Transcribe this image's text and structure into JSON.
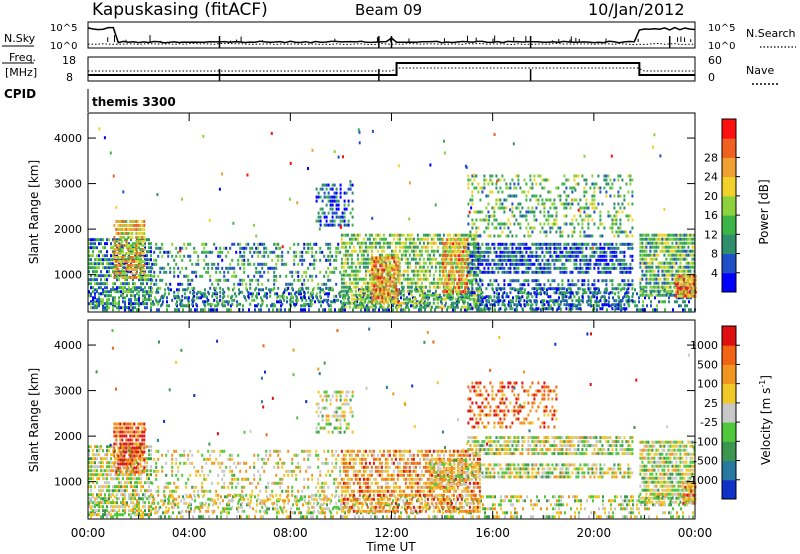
{
  "header": {
    "station": "Kapuskasing (fitACF)",
    "beam": "Beam 09",
    "date": "10/Jan/2012"
  },
  "noise_panel": {
    "left_label": "N.Sky",
    "right_label": "N.Search",
    "left_ticks": [
      "10^5",
      "10^0"
    ],
    "right_ticks": [
      "10^5",
      "10^0"
    ]
  },
  "freq_panel": {
    "left_label_1": "Freq.",
    "left_label_2": "[MHz]",
    "right_label": "Nave",
    "left_ticks": [
      "18",
      "8"
    ],
    "right_ticks": [
      "60",
      "0"
    ]
  },
  "cpid": {
    "label": "CPID",
    "value": "themis 3300"
  },
  "x_ticks": [
    "00:00",
    "04:00",
    "08:00",
    "12:00",
    "16:00",
    "20:00",
    "00:00"
  ],
  "xlabel": "Time UT",
  "chart_data": [
    {
      "type": "heatmap",
      "name": "power",
      "ylabel": "Slant Range [km]",
      "y_ticks": [
        "1000",
        "2000",
        "3000",
        "4000"
      ],
      "colorbar_label": "Power [dB]",
      "colorbar_ticks": [
        "4",
        "8",
        "12",
        "16",
        "20",
        "24",
        "28"
      ],
      "colorbar_colors": [
        "#0000ff",
        "#2050c8",
        "#2f8f6a",
        "#3cb448",
        "#8cd23c",
        "#f0d22a",
        "#f0a030",
        "#f06020",
        "#ff1010"
      ],
      "xlim_hours": [
        0,
        24
      ],
      "ylim_km": [
        180,
        4550
      ],
      "regions": [
        {
          "t0": 0.0,
          "t1": 24.0,
          "r0": 200,
          "r1": 700,
          "level": 0.25,
          "density": 0.4
        },
        {
          "t0": 0.0,
          "t1": 2.5,
          "r0": 300,
          "r1": 1800,
          "level": 0.3,
          "density": 0.7
        },
        {
          "t0": 1.0,
          "t1": 2.2,
          "r0": 900,
          "r1": 2200,
          "level": 0.65,
          "density": 0.85
        },
        {
          "t0": 2.5,
          "t1": 10.0,
          "r0": 300,
          "r1": 1700,
          "level": 0.3,
          "density": 0.35
        },
        {
          "t0": 9.0,
          "t1": 10.5,
          "r0": 2100,
          "r1": 3000,
          "level": 0.2,
          "density": 0.5
        },
        {
          "t0": 10.0,
          "t1": 15.5,
          "r0": 300,
          "r1": 1900,
          "level": 0.45,
          "density": 0.7
        },
        {
          "t0": 11.2,
          "t1": 12.3,
          "r0": 400,
          "r1": 1400,
          "level": 0.75,
          "density": 0.9
        },
        {
          "t0": 14.0,
          "t1": 15.0,
          "r0": 600,
          "r1": 1800,
          "level": 0.7,
          "density": 0.85
        },
        {
          "t0": 15.0,
          "t1": 21.5,
          "r0": 1000,
          "r1": 1700,
          "level": 0.2,
          "density": 0.75
        },
        {
          "t0": 15.0,
          "t1": 21.5,
          "r0": 1800,
          "r1": 3200,
          "level": 0.4,
          "density": 0.35
        },
        {
          "t0": 15.0,
          "t1": 21.5,
          "r0": 200,
          "r1": 900,
          "level": 0.2,
          "density": 0.55
        },
        {
          "t0": 21.8,
          "t1": 24.0,
          "r0": 500,
          "r1": 1900,
          "level": 0.4,
          "density": 0.85
        },
        {
          "t0": 23.2,
          "t1": 24.0,
          "r0": 500,
          "r1": 1000,
          "level": 0.75,
          "density": 0.9
        }
      ]
    },
    {
      "type": "heatmap",
      "name": "velocity",
      "ylabel": "Slant Range [km]",
      "y_ticks": [
        "1000",
        "2000",
        "3000",
        "4000"
      ],
      "colorbar_label": "Velocity [m s^-1]",
      "colorbar_ticks": [
        "1000",
        "500",
        "100",
        "25",
        "-25",
        "-100",
        "-500",
        "-1000"
      ],
      "colorbar_colors": [
        "#1030c8",
        "#2878a0",
        "#3c9650",
        "#50c83c",
        "#c8c8c8",
        "#f0c828",
        "#f09620",
        "#f06414",
        "#e01010"
      ],
      "xlim_hours": [
        0,
        24
      ],
      "ylim_km": [
        180,
        4550
      ],
      "regions": [
        {
          "t0": 0.0,
          "t1": 24.0,
          "r0": 200,
          "r1": 700,
          "level": 0.5,
          "density": 0.35
        },
        {
          "t0": 0.0,
          "t1": 2.5,
          "r0": 300,
          "r1": 1800,
          "level": 0.5,
          "density": 0.75
        },
        {
          "t0": 1.0,
          "t1": 2.2,
          "r0": 1200,
          "r1": 2300,
          "level": 0.85,
          "density": 0.85
        },
        {
          "t0": 2.5,
          "t1": 10.0,
          "r0": 300,
          "r1": 1700,
          "level": 0.55,
          "density": 0.3
        },
        {
          "t0": 9.0,
          "t1": 10.5,
          "r0": 2100,
          "r1": 3000,
          "level": 0.5,
          "density": 0.5
        },
        {
          "t0": 10.0,
          "t1": 15.5,
          "r0": 300,
          "r1": 1700,
          "level": 0.72,
          "density": 0.7
        },
        {
          "t0": 13.5,
          "t1": 15.0,
          "r0": 800,
          "r1": 1500,
          "level": 0.55,
          "density": 0.8
        },
        {
          "t0": 15.0,
          "t1": 21.5,
          "r0": 1600,
          "r1": 2000,
          "level": 0.5,
          "density": 0.75
        },
        {
          "t0": 15.0,
          "t1": 21.5,
          "r0": 1100,
          "r1": 1400,
          "level": 0.5,
          "density": 0.7
        },
        {
          "t0": 15.0,
          "t1": 18.5,
          "r0": 2200,
          "r1": 3200,
          "level": 0.85,
          "density": 0.4
        },
        {
          "t0": 21.8,
          "t1": 24.0,
          "r0": 500,
          "r1": 1900,
          "level": 0.5,
          "density": 0.85
        },
        {
          "t0": 23.5,
          "t1": 24.0,
          "r0": 500,
          "r1": 1000,
          "level": 0.72,
          "density": 0.9
        }
      ]
    }
  ]
}
